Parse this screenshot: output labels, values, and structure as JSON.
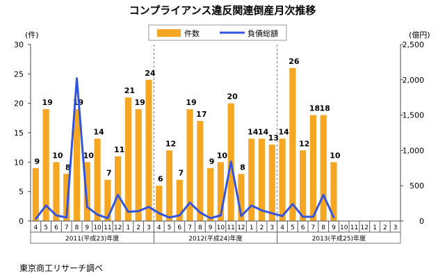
{
  "chart_data": {
    "type": "bar",
    "title": "コンプライアンス違反関連倒産月次推移",
    "y_left_unit": "(件)",
    "y_right_unit": "(億円)",
    "y_left_ticks": [
      "0",
      "5",
      "10",
      "15",
      "20",
      "25",
      "30"
    ],
    "y_right_ticks": [
      "0",
      "500",
      "1,000",
      "1,500",
      "2,000",
      "2,500"
    ],
    "ylim_left": [
      0,
      30
    ],
    "ylim_right": [
      0,
      2500
    ],
    "months": [
      "4",
      "5",
      "6",
      "7",
      "8",
      "9",
      "10",
      "11",
      "12",
      "1",
      "2",
      "3",
      "4",
      "5",
      "6",
      "7",
      "8",
      "9",
      "10",
      "11",
      "12",
      "1",
      "2",
      "3",
      "4",
      "5",
      "6",
      "7",
      "8",
      "9",
      "10",
      "11",
      "12",
      "1",
      "2",
      "3"
    ],
    "fiscal_years": [
      {
        "label": "2011(平成23)年度",
        "start": 0,
        "count": 12
      },
      {
        "label": "2012(平成24)年度",
        "start": 12,
        "count": 12
      },
      {
        "label": "2013(平成25)年度",
        "start": 24,
        "count": 12
      }
    ],
    "series": [
      {
        "name": "件数",
        "type": "bar",
        "axis": "left",
        "color": "#f5a623",
        "values": [
          9,
          19,
          10,
          8,
          19,
          10,
          14,
          7,
          11,
          21,
          19,
          24,
          6,
          12,
          7,
          19,
          17,
          9,
          10,
          20,
          8,
          14,
          14,
          13,
          14,
          26,
          12,
          18,
          18,
          10,
          null,
          null,
          null,
          null,
          null,
          null
        ],
        "labels": [
          "9",
          "19",
          "10",
          "8",
          "19",
          "10",
          "14",
          "7",
          "11",
          "21",
          "19",
          "24",
          "6",
          "12",
          "7",
          "19",
          "17",
          "9",
          "10",
          "20",
          "8",
          "14",
          "14",
          "13",
          "14",
          "26",
          "12",
          "18",
          "18",
          "10",
          "",
          "",
          "",
          "",
          "",
          ""
        ]
      },
      {
        "name": "負債総額",
        "type": "line",
        "axis": "right",
        "color": "#3355dd",
        "values": [
          30,
          220,
          80,
          50,
          2020,
          200,
          90,
          40,
          370,
          130,
          140,
          200,
          110,
          50,
          80,
          260,
          120,
          40,
          80,
          840,
          70,
          220,
          150,
          110,
          70,
          240,
          60,
          60,
          370,
          50,
          null,
          null,
          null,
          null,
          null,
          null
        ]
      }
    ],
    "source_note": "東京商工リサーチ調べ"
  }
}
